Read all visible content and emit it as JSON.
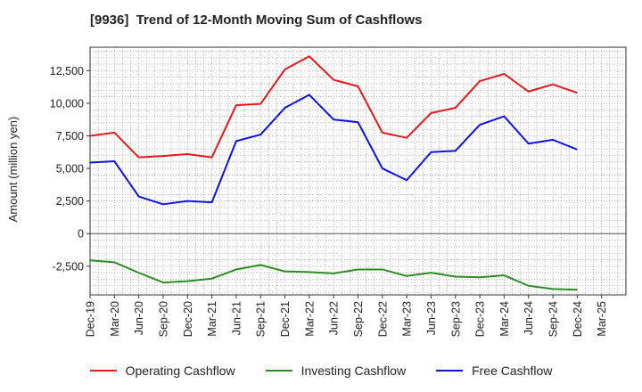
{
  "chart_data": {
    "type": "line",
    "title": "[9936]  Trend of 12-Month Moving Sum of Cashflows",
    "ylabel": "Amount (million yen)",
    "xlabel": "",
    "ylim": [
      -4700,
      14300
    ],
    "yticks": [
      12500,
      10000,
      7500,
      5000,
      2500,
      0,
      -2500
    ],
    "ytick_labels": [
      "12,500",
      "10,000",
      "7,500",
      "5,000",
      "2,500",
      "0",
      "-2,500"
    ],
    "categories": [
      "Dec-19",
      "Mar-20",
      "Jun-20",
      "Sep-20",
      "Dec-20",
      "Mar-21",
      "Jun-21",
      "Sep-21",
      "Dec-21",
      "Mar-22",
      "Jun-22",
      "Sep-22",
      "Dec-22",
      "Mar-23",
      "Jun-23",
      "Sep-23",
      "Dec-23",
      "Mar-24",
      "Jun-24",
      "Sep-24",
      "Dec-24",
      "Mar-25"
    ],
    "grid": true,
    "legend_position": "bottom",
    "series": [
      {
        "name": "Operating Cashflow",
        "color": "#e31a1c",
        "values": [
          7500,
          7750,
          5850,
          5950,
          6100,
          5850,
          9850,
          9950,
          12600,
          13600,
          11800,
          11300,
          7750,
          7350,
          9250,
          9650,
          11700,
          12250,
          10900,
          11450,
          10800,
          null
        ]
      },
      {
        "name": "Investing Cashflow",
        "color": "#2e8b22",
        "values": [
          -2050,
          -2200,
          -3000,
          -3750,
          -3650,
          -3450,
          -2750,
          -2400,
          -2900,
          -2950,
          -3050,
          -2750,
          -2750,
          -3250,
          -3000,
          -3300,
          -3350,
          -3200,
          -4000,
          -4250,
          -4300,
          null
        ]
      },
      {
        "name": "Free Cashflow",
        "color": "#1010e0",
        "values": [
          5450,
          5550,
          2850,
          2250,
          2500,
          2400,
          7100,
          7600,
          9650,
          10650,
          8750,
          8550,
          5000,
          4100,
          6250,
          6350,
          8350,
          9000,
          6900,
          7200,
          6450,
          null
        ]
      }
    ]
  }
}
